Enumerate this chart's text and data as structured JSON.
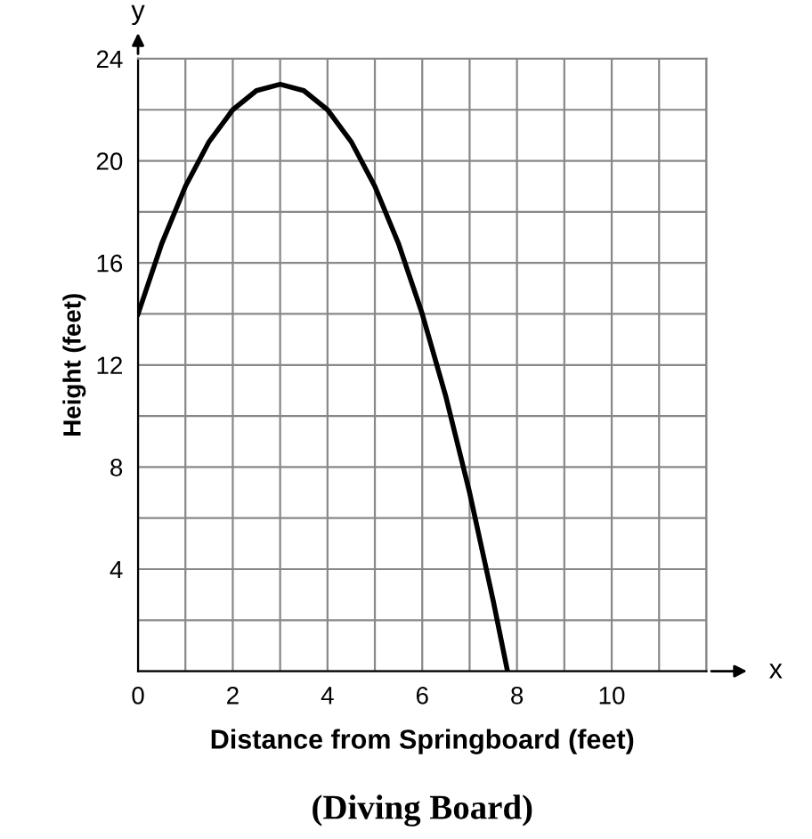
{
  "chart_data": {
    "type": "line",
    "title": "(Diving Board)",
    "xlabel": "Distance from Springboard (feet)",
    "ylabel": "Height (feet)",
    "annotations": [
      "x",
      "y"
    ],
    "x": [
      0,
      0.5,
      1,
      1.5,
      2,
      2.5,
      3,
      3.5,
      4,
      4.5,
      5,
      5.5,
      6,
      6.5,
      7,
      7.5,
      7.8
    ],
    "series": [
      {
        "color": "#000000",
        "values": [
          14,
          16.75,
          19,
          20.75,
          22,
          22.75,
          23,
          22.75,
          22,
          20.75,
          19,
          16.75,
          14,
          10.75,
          7,
          2.75,
          0
        ]
      }
    ],
    "xlim": [
      0,
      12
    ],
    "ylim": [
      0,
      24
    ],
    "xticks": [
      0,
      {
        "value": 1,
        "label": null
      },
      2,
      {
        "value": 3,
        "label": null
      },
      4,
      {
        "value": 5,
        "label": null
      },
      6,
      {
        "value": 7,
        "label": null
      },
      8,
      {
        "value": 9,
        "label": null
      },
      10,
      {
        "value": 11,
        "label": null
      },
      {
        "value": 12,
        "label": null
      }
    ],
    "yticks": [
      {
        "value": 0,
        "label": null
      },
      {
        "value": 2,
        "label": null
      },
      4,
      {
        "value": 6,
        "label": null
      },
      8,
      {
        "value": 10,
        "label": null
      },
      12,
      {
        "value": 14,
        "label": null
      },
      16,
      {
        "value": 18,
        "label": null
      },
      20,
      {
        "value": 22,
        "label": null
      },
      24
    ],
    "grid": true,
    "marker": "none",
    "line_style": "solid"
  }
}
